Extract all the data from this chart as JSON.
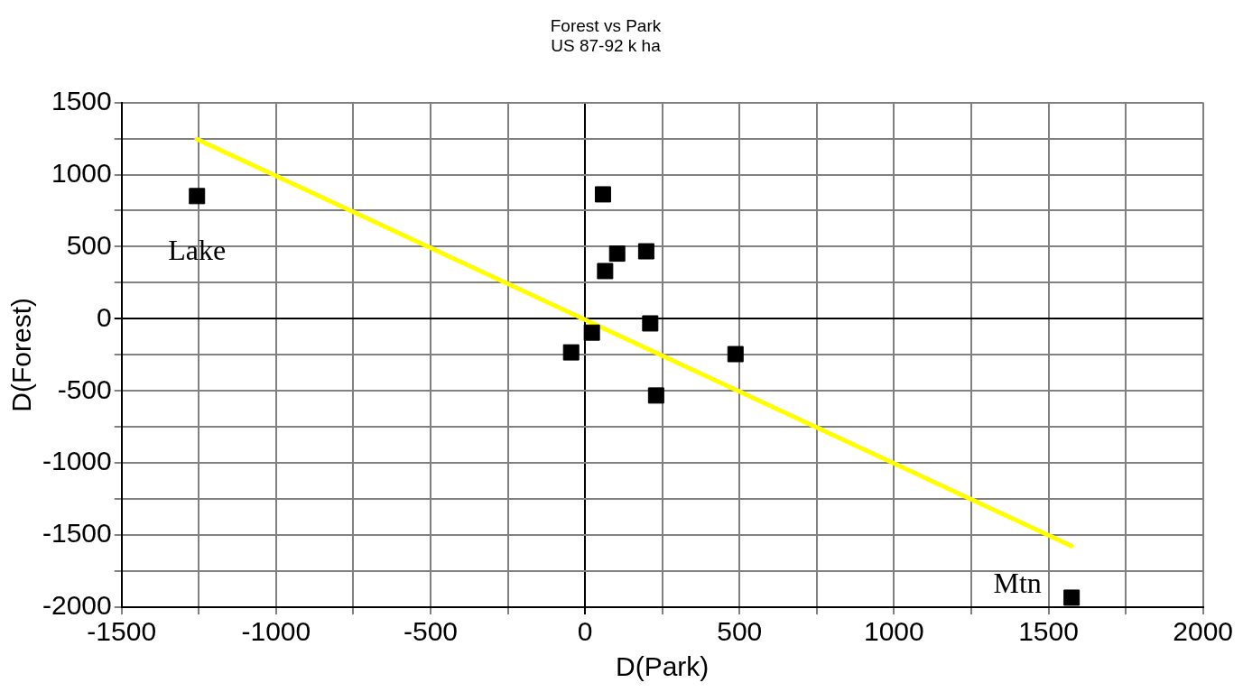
{
  "chart_data": {
    "type": "scatter",
    "title": "Forest vs Park",
    "subtitle": "US 87-92 k ha",
    "xlabel": "D(Park)",
    "ylabel": "D(Forest)",
    "series": [
      {
        "type": "scatter",
        "color": "#000000",
        "x": [
          -1256,
          58,
          104,
          198,
          65,
          211,
          22,
          -45,
          487,
          230,
          1575
        ],
        "values": [
          851,
          863,
          452,
          468,
          331,
          -32,
          -96,
          -233,
          -245,
          -532,
          -1934
        ],
        "marker": "square"
      },
      {
        "type": "line",
        "color": "#ffff00",
        "x": [
          -1257,
          1573
        ],
        "values": [
          1247,
          -1573
        ],
        "marker": "none"
      }
    ],
    "annotations": [
      {
        "text": "Lake",
        "x": -1256,
        "y": 851
      },
      {
        "text": "Mtn",
        "x": 1575,
        "y": -1934
      }
    ],
    "xlim": [
      -1500,
      2000
    ],
    "xticks": [
      -1500,
      {
        "value": -1250,
        "label": null
      },
      -1000,
      {
        "value": -750,
        "label": null
      },
      -500,
      {
        "value": -250,
        "label": null
      },
      0,
      {
        "value": 250,
        "label": null
      },
      500,
      {
        "value": 750,
        "label": null
      },
      1000,
      {
        "value": 1250,
        "label": null
      },
      1500,
      {
        "value": 1750,
        "label": null
      },
      2000
    ],
    "ylim": [
      -2000,
      1500
    ],
    "yticks": [
      -2000,
      {
        "value": -1750,
        "label": null
      },
      -1500,
      {
        "value": -1250,
        "label": null
      },
      -1000,
      {
        "value": -750,
        "label": null
      },
      -500,
      {
        "value": -250,
        "label": null
      },
      0,
      {
        "value": 250,
        "label": null
      },
      500,
      {
        "value": 750,
        "label": null
      },
      1000,
      {
        "value": 1250,
        "label": null
      },
      1500
    ],
    "grid": true,
    "legend": false
  }
}
